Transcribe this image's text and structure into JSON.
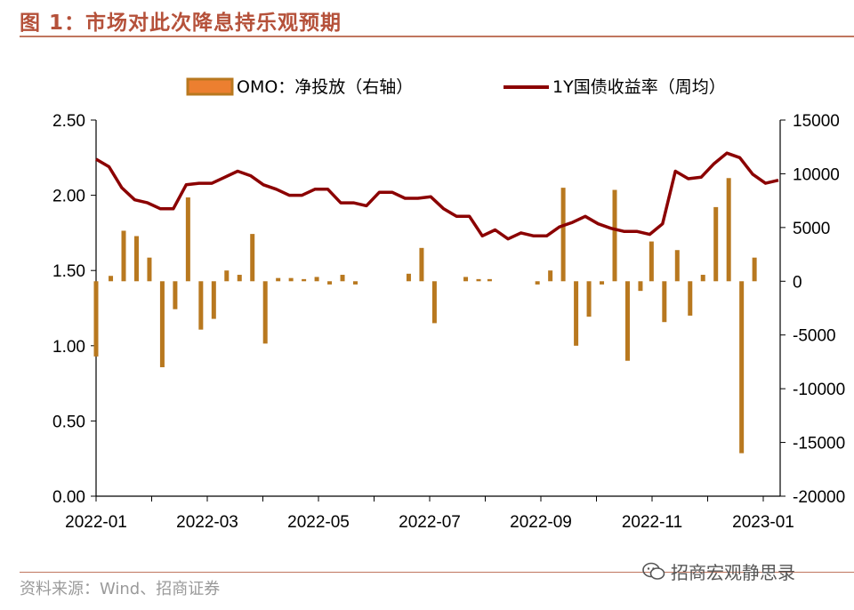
{
  "header": {
    "title": "图 1：市场对此次降息持乐观预期"
  },
  "footer": {
    "source": "资料来源：Wind、招商证券",
    "watermark": "招商宏观静思录",
    "watermark_icon": "wechat-icon"
  },
  "colors": {
    "bar_fill": "#b8781f",
    "line": "#8b0000",
    "legend_bar_fill": "#ec7f30",
    "legend_bar_stroke": "#b8781f",
    "accent": "#b5513a"
  },
  "chart_data": {
    "type": "bar+line",
    "title": "",
    "legend": {
      "position": "top",
      "items": [
        {
          "label": "OMO：净投放（右轴）",
          "kind": "bar"
        },
        {
          "label": "1Y国债收益率（周均）",
          "kind": "line"
        }
      ]
    },
    "y_left": {
      "lim": [
        0,
        2.5
      ],
      "ticks": [
        "0.00",
        "0.50",
        "1.00",
        "1.50",
        "2.00",
        "2.50"
      ]
    },
    "y_right": {
      "lim": [
        -20000,
        15000
      ],
      "ticks": [
        "-20000",
        "-15000",
        "-10000",
        "-5000",
        "0",
        "5000",
        "10000",
        "15000"
      ]
    },
    "x_ticks": [
      "2022-01",
      "2022-03",
      "2022-05",
      "2022-07",
      "2022-09",
      "2022-11",
      "2023-01"
    ],
    "grid": false,
    "series": [
      {
        "name": "OMO：净投放（右轴）",
        "axis": "right",
        "type": "bar",
        "points": [
          [
            0.0,
            -7000
          ],
          [
            0.4,
            500
          ],
          [
            0.75,
            4700
          ],
          [
            1.1,
            4200
          ],
          [
            1.45,
            2200
          ],
          [
            1.8,
            -8000
          ],
          [
            2.15,
            -2600
          ],
          [
            2.5,
            7800
          ],
          [
            2.85,
            -4500
          ],
          [
            3.2,
            -3500
          ],
          [
            3.55,
            1000
          ],
          [
            3.9,
            600
          ],
          [
            4.25,
            4400
          ],
          [
            4.6,
            -5800
          ],
          [
            4.95,
            300
          ],
          [
            5.3,
            300
          ],
          [
            5.65,
            200
          ],
          [
            6.0,
            400
          ],
          [
            6.35,
            -300
          ],
          [
            6.7,
            600
          ],
          [
            7.05,
            -300
          ],
          [
            8.5,
            700
          ],
          [
            8.85,
            3100
          ],
          [
            9.2,
            -3900
          ],
          [
            10.05,
            400
          ],
          [
            10.4,
            200
          ],
          [
            10.7,
            200
          ],
          [
            12.0,
            -300
          ],
          [
            12.35,
            1000
          ],
          [
            12.7,
            8700
          ],
          [
            13.05,
            -6000
          ],
          [
            13.4,
            -3300
          ],
          [
            13.75,
            -300
          ],
          [
            14.1,
            8500
          ],
          [
            14.45,
            -7400
          ],
          [
            14.8,
            -900
          ],
          [
            15.1,
            3700
          ],
          [
            15.45,
            -3800
          ],
          [
            15.8,
            2900
          ],
          [
            16.15,
            -3200
          ],
          [
            16.5,
            600
          ],
          [
            16.85,
            6900
          ],
          [
            17.2,
            9600
          ],
          [
            17.55,
            -16000
          ],
          [
            17.9,
            2200
          ]
        ]
      },
      {
        "name": "1Y国债收益率（周均）",
        "axis": "left",
        "type": "line",
        "points": [
          [
            0.0,
            2.24
          ],
          [
            0.35,
            2.19
          ],
          [
            0.7,
            2.05
          ],
          [
            1.05,
            1.97
          ],
          [
            1.4,
            1.95
          ],
          [
            1.75,
            1.91
          ],
          [
            2.1,
            1.91
          ],
          [
            2.45,
            2.07
          ],
          [
            2.8,
            2.08
          ],
          [
            3.15,
            2.08
          ],
          [
            3.5,
            2.12
          ],
          [
            3.85,
            2.16
          ],
          [
            4.2,
            2.13
          ],
          [
            4.55,
            2.07
          ],
          [
            4.9,
            2.04
          ],
          [
            5.25,
            2.0
          ],
          [
            5.6,
            2.0
          ],
          [
            5.95,
            2.04
          ],
          [
            6.3,
            2.04
          ],
          [
            6.65,
            1.95
          ],
          [
            7.0,
            1.95
          ],
          [
            7.35,
            1.93
          ],
          [
            7.7,
            2.02
          ],
          [
            8.05,
            2.02
          ],
          [
            8.4,
            1.98
          ],
          [
            8.75,
            1.98
          ],
          [
            9.1,
            1.99
          ],
          [
            9.45,
            1.91
          ],
          [
            9.8,
            1.86
          ],
          [
            10.15,
            1.86
          ],
          [
            10.5,
            1.73
          ],
          [
            10.85,
            1.77
          ],
          [
            11.2,
            1.71
          ],
          [
            11.55,
            1.75
          ],
          [
            11.9,
            1.73
          ],
          [
            12.25,
            1.73
          ],
          [
            12.6,
            1.79
          ],
          [
            12.95,
            1.82
          ],
          [
            13.3,
            1.86
          ],
          [
            13.65,
            1.81
          ],
          [
            14.0,
            1.78
          ],
          [
            14.35,
            1.76
          ],
          [
            14.7,
            1.76
          ],
          [
            15.05,
            1.74
          ],
          [
            15.4,
            1.81
          ],
          [
            15.75,
            2.16
          ],
          [
            16.1,
            2.11
          ],
          [
            16.45,
            2.12
          ],
          [
            16.8,
            2.21
          ],
          [
            17.15,
            2.28
          ],
          [
            17.5,
            2.25
          ],
          [
            17.85,
            2.14
          ],
          [
            18.2,
            2.08
          ],
          [
            18.55,
            2.1
          ]
        ]
      }
    ]
  }
}
